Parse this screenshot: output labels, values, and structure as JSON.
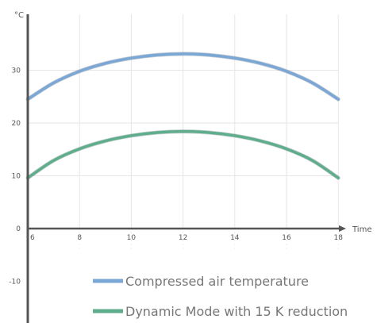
{
  "chart_data": {
    "type": "line",
    "title": "",
    "xlabel": "Time",
    "ylabel": "°C",
    "xlim": [
      6,
      18
    ],
    "ylim": [
      -15,
      40
    ],
    "x_ticks": [
      6,
      8,
      10,
      12,
      14,
      16,
      18
    ],
    "y_ticks": [
      -10,
      0,
      10,
      20,
      30
    ],
    "grid": true,
    "legend_position": "bottom",
    "series": [
      {
        "name": "Compressed air temperature",
        "color": "#7ba7d6",
        "x": [
          6,
          7,
          8,
          9,
          10,
          11,
          12,
          13,
          14,
          15,
          16,
          17,
          18
        ],
        "values": [
          24.5,
          27.6,
          29.8,
          31.3,
          32.3,
          32.9,
          33.1,
          32.9,
          32.3,
          31.3,
          29.8,
          27.6,
          24.5
        ]
      },
      {
        "name": "Dynamic Mode with 15 K reduction",
        "color": "#5fae8b",
        "x": [
          6,
          7,
          8,
          9,
          10,
          11,
          12,
          13,
          14,
          15,
          16,
          17,
          18
        ],
        "values": [
          9.6,
          12.9,
          15.1,
          16.6,
          17.6,
          18.2,
          18.4,
          18.2,
          17.6,
          16.6,
          15.1,
          12.9,
          9.6
        ]
      }
    ]
  }
}
